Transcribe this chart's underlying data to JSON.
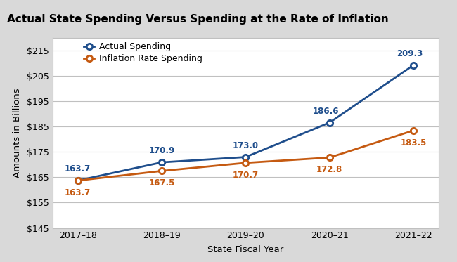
{
  "title": "Actual State Spending Versus Spending at the Rate of Inflation",
  "xlabel": "State Fiscal Year",
  "ylabel": "Amounts in Billions",
  "categories": [
    "2017–18",
    "2018–19",
    "2019–20",
    "2020–21",
    "2021–22"
  ],
  "actual_spending": [
    163.7,
    170.9,
    173.0,
    186.6,
    209.3
  ],
  "inflation_spending": [
    163.7,
    167.5,
    170.7,
    172.8,
    183.5
  ],
  "actual_color": "#1f4e8c",
  "inflation_color": "#c55a11",
  "title_bg_color": "#d9d9d9",
  "plot_bg_color": "#ffffff",
  "fig_bg_color": "#d9d9d9",
  "ylim": [
    145,
    220
  ],
  "yticks": [
    145,
    155,
    165,
    175,
    185,
    195,
    205,
    215
  ],
  "grid_color": "#c0c0c0",
  "actual_label": "Actual Spending",
  "inflation_label": "Inflation Rate Spending",
  "title_fontsize": 11,
  "label_fontsize": 8.5,
  "axis_fontsize": 9
}
